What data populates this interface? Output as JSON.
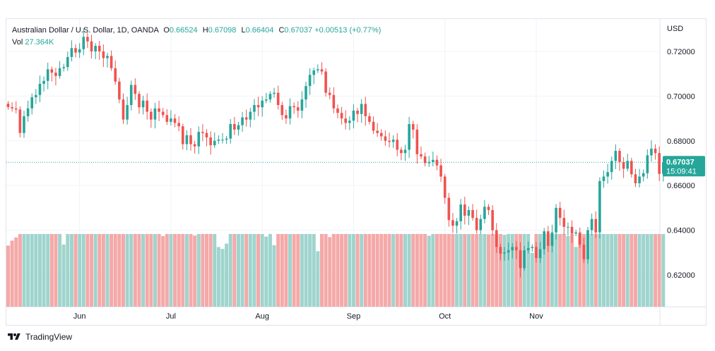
{
  "legend": {
    "title": "Australian Dollar / U.S. Dollar, 1D, OANDA",
    "o_label": "O",
    "o_value": "0.66524",
    "h_label": "H",
    "h_value": "0.67098",
    "l_label": "L",
    "l_value": "0.66404",
    "c_label": "C",
    "c_value": "0.67037",
    "change": "+0.00513 (+0.77%)",
    "vol_label": "Vol",
    "vol_value": "27.364K"
  },
  "price_axis": {
    "currency": "USD",
    "current_price": "0.67037",
    "countdown": "15:09:41"
  },
  "footer": {
    "brand": "TradingView"
  },
  "colors": {
    "up": "#26a69a",
    "down": "#ef5350",
    "vol_up": "#9fd4cd",
    "vol_down": "#f4a9a8",
    "grid": "#f0f3fa",
    "axis_text": "#131722",
    "price_tag": "#26a69a"
  },
  "chart_data": {
    "type": "candlestick",
    "title": "Australian Dollar / U.S. Dollar, 1D, OANDA",
    "y_ticks": [
      "0.72000",
      "0.70000",
      "0.68000",
      "0.66000",
      "0.64000",
      "0.62000"
    ],
    "ylim": [
      0.6058,
      0.7345
    ],
    "x_ticks": [
      "Jun",
      "Jul",
      "Aug",
      "Sep",
      "Oct",
      "Nov"
    ],
    "x_tick_index": [
      18,
      41,
      64,
      87,
      110,
      133
    ],
    "current_price": 0.67037,
    "close": [
      0.6951,
      0.6945,
      0.694,
      0.6835,
      0.691,
      0.6945,
      0.6995,
      0.7005,
      0.7055,
      0.7068,
      0.712,
      0.7105,
      0.709,
      0.7125,
      0.713,
      0.7175,
      0.7215,
      0.7195,
      0.721,
      0.7265,
      0.7245,
      0.72,
      0.7225,
      0.72,
      0.717,
      0.718,
      0.7125,
      0.7065,
      0.6985,
      0.6895,
      0.696,
      0.705,
      0.701,
      0.695,
      0.698,
      0.693,
      0.6895,
      0.6945,
      0.693,
      0.6915,
      0.6885,
      0.69,
      0.688,
      0.6865,
      0.6785,
      0.6825,
      0.6785,
      0.6775,
      0.684,
      0.6835,
      0.6815,
      0.678,
      0.68,
      0.6805,
      0.6805,
      0.681,
      0.6875,
      0.685,
      0.687,
      0.6905,
      0.6895,
      0.693,
      0.696,
      0.695,
      0.698,
      0.6985,
      0.701,
      0.7015,
      0.696,
      0.6915,
      0.69,
      0.6955,
      0.695,
      0.6935,
      0.6985,
      0.7045,
      0.7095,
      0.7115,
      0.712,
      0.711,
      0.7015,
      0.7005,
      0.6945,
      0.6925,
      0.69,
      0.688,
      0.689,
      0.6935,
      0.692,
      0.6965,
      0.691,
      0.6885,
      0.6845,
      0.6835,
      0.682,
      0.68,
      0.6795,
      0.6805,
      0.676,
      0.6745,
      0.676,
      0.6875,
      0.685,
      0.674,
      0.673,
      0.67,
      0.6705,
      0.6715,
      0.669,
      0.664,
      0.6545,
      0.6445,
      0.642,
      0.644,
      0.6515,
      0.6465,
      0.649,
      0.6455,
      0.64,
      0.645,
      0.6505,
      0.649,
      0.64,
      0.6325,
      0.6295,
      0.63,
      0.631,
      0.6325,
      0.631,
      0.623,
      0.631,
      0.632,
      0.6325,
      0.6275,
      0.6315,
      0.6395,
      0.633,
      0.639,
      0.65,
      0.6455,
      0.6415,
      0.6415,
      0.6385,
      0.639,
      0.6335,
      0.627,
      0.64,
      0.645,
      0.639,
      0.662,
      0.664,
      0.666,
      0.671,
      0.6755,
      0.6705,
      0.6675,
      0.671,
      0.665,
      0.661,
      0.664,
      0.6655,
      0.6735,
      0.6765,
      0.6745,
      0.6652,
      0.6704
    ]
  }
}
